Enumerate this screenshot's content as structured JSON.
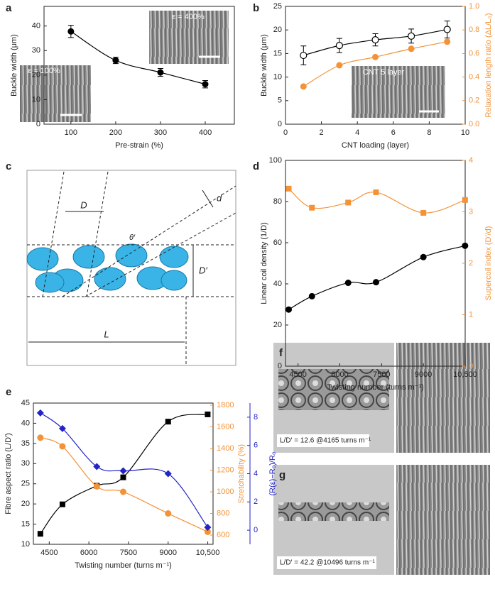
{
  "chart_data": [
    {
      "type": "scatter",
      "label": "a",
      "xlabel": "Pre-strain (%)",
      "ylabel": "Buckle width (μm)",
      "x": [
        100,
        200,
        300,
        400
      ],
      "xlim": [
        40,
        465
      ],
      "xticks": [
        100,
        200,
        300,
        400
      ],
      "ylim": [
        0,
        48
      ],
      "yticks": [
        0,
        10,
        20,
        30,
        40
      ],
      "series": [
        {
          "color": "#000000",
          "marker": "filled-circle",
          "values": [
            37.8,
            26,
            21.1,
            16.3
          ],
          "errors": [
            2.5,
            1.3,
            1.6,
            1.5
          ]
        }
      ],
      "insets": [
        "ε = 400%",
        "ε = 100%"
      ]
    },
    {
      "type": "scatter",
      "label": "b",
      "xlabel": "CNT loading (layer)",
      "ylabel": "Buckle width (μm)",
      "y2label": "Relaxation length ratio (ΔL/L₀)",
      "x": [
        1,
        3,
        5,
        7,
        9
      ],
      "xlim": [
        0,
        10
      ],
      "xticks": [
        0,
        2,
        4,
        6,
        8,
        10
      ],
      "ylim": [
        0,
        25
      ],
      "yticks": [
        0,
        5,
        10,
        15,
        20,
        25
      ],
      "y2lim": [
        0,
        1
      ],
      "y2ticks": [
        {
          "value": 0,
          "label": "0.0"
        },
        0.2,
        0.4,
        0.6,
        0.8,
        {
          "value": 1,
          "label": "1.0"
        }
      ],
      "series": [
        {
          "color": "#000000",
          "marker": "open-circle",
          "values": [
            14.6,
            16.7,
            17.9,
            18.7,
            20.1
          ],
          "errors": [
            2,
            1.5,
            1.3,
            1.5,
            1.8
          ]
        },
        {
          "color": "#f39237",
          "marker": "filled-circle",
          "axis": "y2",
          "values": [
            0.32,
            0.5,
            0.57,
            0.64,
            0.7
          ]
        }
      ],
      "insets": [
        "CNT 5 layer"
      ]
    },
    {
      "type": "scatter",
      "label": "d",
      "xlabel": "Twisting number (turns m⁻¹)",
      "ylabel": "Linear coil density (1/D)",
      "y2label": "Supercoil index (D′/d)",
      "x": [
        4165,
        5000,
        6300,
        7300,
        9000,
        10496
      ],
      "xlim": [
        4050,
        10500
      ],
      "xticks": [
        4500,
        6000,
        7500,
        9000,
        {
          "value": 10500,
          "label": "10,500"
        }
      ],
      "ylim": [
        0,
        100
      ],
      "yticks": [
        0,
        20,
        40,
        60,
        80,
        100
      ],
      "y2lim": [
        0,
        4
      ],
      "y2ticks": [
        0,
        1,
        2,
        3,
        4
      ],
      "series": [
        {
          "color": "#000000",
          "marker": "filled-circle",
          "values": [
            27.5,
            34,
            40.5,
            40.8,
            53,
            58.5
          ]
        },
        {
          "color": "#f39237",
          "marker": "square",
          "axis": "y2",
          "values": [
            3.45,
            3.08,
            3.18,
            3.38,
            2.98,
            3.23
          ]
        }
      ]
    },
    {
      "type": "scatter",
      "label": "e",
      "xlabel": "Twisting number (turns m⁻¹)",
      "ylabel": "Fibre aspect ratio (L/D′)",
      "y2label": "Stretchability (%)",
      "y3label": "(R(ε)−R₀)/R₀",
      "x": [
        4165,
        5000,
        6300,
        7300,
        9000,
        10496
      ],
      "xlim": [
        3900,
        10700
      ],
      "xticks": [
        4500,
        6000,
        7500,
        9000,
        {
          "value": 10500,
          "label": "10,500"
        }
      ],
      "ylim": [
        10,
        45
      ],
      "yticks": [
        10,
        15,
        20,
        25,
        30,
        35,
        40,
        45
      ],
      "y2lim": [
        515,
        1820
      ],
      "y2ticks": [
        600,
        800,
        1000,
        1200,
        1400,
        1600,
        1800
      ],
      "y3lim": [
        -1,
        9
      ],
      "y3ticks": [
        0,
        2,
        4,
        6,
        8
      ],
      "series": [
        {
          "color": "#000000",
          "marker": "square",
          "values": [
            12.6,
            19.9,
            24.5,
            26.6,
            40.4,
            42.2
          ]
        },
        {
          "color": "#f39237",
          "marker": "filled-circle",
          "axis": "y2",
          "values": [
            1500,
            1420,
            1050,
            1000,
            800,
            630
          ]
        },
        {
          "color": "#2323c8",
          "marker": "diamond",
          "axis": "y3",
          "values": [
            8.3,
            7.2,
            4.5,
            4.2,
            4.0,
            0.2
          ]
        }
      ]
    }
  ],
  "diagram": {
    "label": "c",
    "labels": [
      "D",
      "θ′",
      "d",
      "D′",
      "L"
    ]
  },
  "photos": [
    {
      "label": "f",
      "caption": "L/D′ = 12.6 @4165 turns m⁻¹"
    },
    {
      "label": "g",
      "caption": "L/D′ = 42.2 @10496 turns m⁻¹"
    }
  ]
}
